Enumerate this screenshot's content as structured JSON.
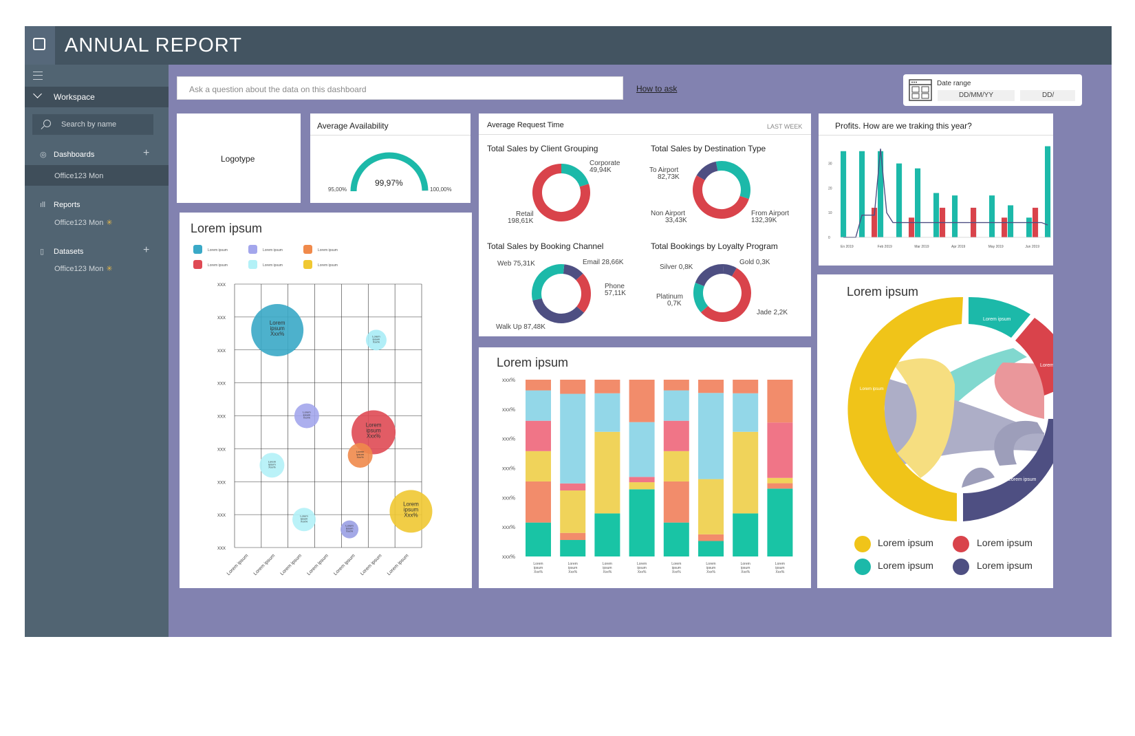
{
  "app": {
    "title": "ANNUAL REPORT"
  },
  "sidebar": {
    "workspace_label": "Workspace",
    "search_placeholder": "Search by name",
    "dashboards": {
      "label": "Dashboards",
      "item": "Office123 Mon"
    },
    "reports": {
      "label": "Reports",
      "item": "Office123 Mon"
    },
    "datasets": {
      "label": "Datasets",
      "item": "Office123 Mon"
    }
  },
  "qa": {
    "placeholder": "Ask a question about the data on this dashboard",
    "how_to": "How to ask"
  },
  "date_range": {
    "label": "Date range",
    "from": "DD/MM/YY",
    "to": "DD/"
  },
  "logotype": "Logotype",
  "availability": {
    "title": "Average Availability",
    "value": "99,97%",
    "min": "95,00%",
    "max": "100,00%",
    "fraction": 0.994
  },
  "request_time": {
    "title": "Average Request Time",
    "period": "LAST WEEK",
    "client_grouping": {
      "title": "Total Sales by Client Grouping",
      "labels": {
        "corporate_name": "Corporate",
        "corporate_value": "49,94K",
        "retail_name": "Retail",
        "retail_value": "198,61K"
      },
      "values": [
        49.94,
        198.61
      ]
    },
    "destination_type": {
      "title": "Total Sales by Destination Type",
      "labels": {
        "to_airport_name": "To Airport",
        "to_airport_value": "82,73K",
        "non_airport_name": "Non Airport",
        "non_airport_value": "33,43K",
        "from_airport_name": "From Airport",
        "from_airport_value": "132,39K"
      },
      "values": [
        82.73,
        132.39,
        33.43
      ]
    },
    "booking_channel": {
      "title": "Total Sales by Booking Channel",
      "labels": {
        "web": "Web 75,31K",
        "email": "Email 28,66K",
        "phone_name": "Phone",
        "phone_value": "57,11K",
        "walkup": "Walk Up 87,48K"
      },
      "values": [
        28.66,
        57.11,
        87.48,
        75.31
      ]
    },
    "loyalty_program": {
      "title": "Total Bookings by Loyalty Program",
      "labels": {
        "silver": "Silver 0,8K",
        "gold": "Gold 0,3K",
        "platinum_name": "Platinum",
        "platinum_value": "0,7K",
        "jade": "Jade 2,2K"
      },
      "values": [
        0.3,
        2.2,
        0.7,
        0.8
      ]
    }
  },
  "profits": {
    "title": "Profits. How are we traking this year?"
  },
  "bubble": {
    "title": "Lorem ipsum",
    "legend_label": "Lorem ipsum",
    "tick_label": "xxx",
    "x_label": "Lorem ipsum",
    "bubble_text": "Lorem ipsum Xxx%"
  },
  "stacked": {
    "title": "Lorem ipsum",
    "tick_label": "xxx%",
    "x_label": "Lorem ipsum Xxx%"
  },
  "chord": {
    "title": "Lorem ipsum",
    "arc_label": "Lorem ipsum",
    "legend": [
      "Lorem ipsum",
      "Lorem ipsum",
      "Lorem ipsum",
      "Lorem ipsum"
    ]
  },
  "colors": {
    "teal": "#1cb9a9",
    "red": "#d9434b",
    "navy": "#4e4f82",
    "yellow": "#f0c419",
    "purple_bg": "#8282b0",
    "sidebar": "#516472"
  },
  "chart_data": [
    {
      "type": "pie",
      "title": "Average Availability",
      "values": [
        99.97
      ],
      "range": [
        95,
        100
      ]
    },
    {
      "type": "pie",
      "title": "Total Sales by Client Grouping",
      "categories": [
        "Corporate",
        "Retail"
      ],
      "values": [
        49.94,
        198.61
      ]
    },
    {
      "type": "pie",
      "title": "Total Sales by Destination Type",
      "categories": [
        "To Airport",
        "From Airport",
        "Non Airport"
      ],
      "values": [
        82.73,
        132.39,
        33.43
      ]
    },
    {
      "type": "pie",
      "title": "Total Sales by Booking Channel",
      "categories": [
        "Email",
        "Phone",
        "Walk Up",
        "Web"
      ],
      "values": [
        28.66,
        57.11,
        87.48,
        75.31
      ]
    },
    {
      "type": "pie",
      "title": "Total Bookings by Loyalty Program",
      "categories": [
        "Gold",
        "Jade",
        "Platinum",
        "Silver"
      ],
      "values": [
        0.3,
        2.2,
        0.7,
        0.8
      ]
    },
    {
      "type": "bar",
      "title": "Profits. How are we traking this year?",
      "x_ticks": [
        "En 2019",
        "Feb 2019",
        "Mar 2019",
        "Apr 2019",
        "May 2019",
        "Jun 2019"
      ],
      "y_ticks": [
        "0",
        "10",
        "20",
        "30"
      ],
      "ylim": [
        0,
        38
      ],
      "series": [
        {
          "values": [
            35,
            0,
            0,
            35,
            0,
            0,
            35,
            0,
            0,
            30,
            0,
            0,
            28,
            0,
            0,
            18,
            0,
            0,
            17,
            0,
            0,
            12,
            0,
            0,
            17,
            0,
            0,
            13,
            0,
            0,
            8,
            0,
            0,
            37
          ]
        },
        {
          "values": [
            0,
            0,
            0,
            0,
            0,
            12,
            0,
            0,
            0,
            0,
            0,
            8,
            0,
            0,
            0,
            0,
            12,
            0,
            0,
            0,
            0,
            12,
            0,
            0,
            0,
            0,
            8,
            0,
            0,
            0,
            0,
            12,
            0,
            0
          ]
        }
      ],
      "line": [
        0,
        0,
        0,
        9,
        9,
        9,
        36,
        10,
        6,
        6,
        6,
        6,
        6,
        6,
        6,
        6,
        6,
        6,
        6,
        6,
        6,
        6,
        6,
        6,
        6,
        6,
        6,
        6,
        6,
        6,
        6,
        6,
        6,
        5
      ]
    },
    {
      "type": "scatter",
      "title": "Lorem ipsum",
      "xlim": [
        0,
        7
      ],
      "ylim": [
        0,
        8
      ],
      "points": [
        {
          "x": 1.6,
          "y": 6.6,
          "size": 38,
          "color": "#3aa9c7",
          "label": true
        },
        {
          "x": 5.3,
          "y": 6.3,
          "size": 15,
          "color": "#a9ecf6",
          "label": true
        },
        {
          "x": 2.7,
          "y": 4.0,
          "size": 18,
          "color": "#a3a6ec",
          "label": true
        },
        {
          "x": 5.2,
          "y": 3.5,
          "size": 32,
          "color": "#df4a54",
          "label": true
        },
        {
          "x": 4.7,
          "y": 2.8,
          "size": 18,
          "color": "#f08a4b",
          "label": true
        },
        {
          "x": 1.4,
          "y": 2.5,
          "size": 18,
          "color": "#b3f1f7",
          "label": true
        },
        {
          "x": 6.6,
          "y": 1.1,
          "size": 31,
          "color": "#f0c832",
          "label": true
        },
        {
          "x": 2.6,
          "y": 0.85,
          "size": 17,
          "color": "#b3f1f7",
          "label": true
        },
        {
          "x": 4.3,
          "y": 0.55,
          "size": 13,
          "color": "#9aa0e4",
          "label": true
        }
      ]
    },
    {
      "type": "bar",
      "title": "Lorem ipsum",
      "stacked": true,
      "colors": [
        "#19c4a5",
        "#f28c6b",
        "#f0d35a",
        "#f07587",
        "#93d7e8",
        "#f28c6b"
      ],
      "stacks": [
        [
          19,
          23,
          17,
          17,
          17,
          6
        ],
        [
          7,
          3,
          18,
          3,
          38,
          6
        ],
        [
          19,
          0,
          36,
          0,
          17,
          6
        ],
        [
          38,
          0,
          4,
          3,
          31,
          24
        ],
        [
          19,
          23,
          17,
          17,
          17,
          6
        ],
        [
          7,
          3,
          25,
          0,
          39,
          6
        ],
        [
          19,
          0,
          36,
          0,
          17,
          6
        ],
        [
          38,
          3,
          3,
          31,
          0,
          24
        ]
      ]
    }
  ]
}
